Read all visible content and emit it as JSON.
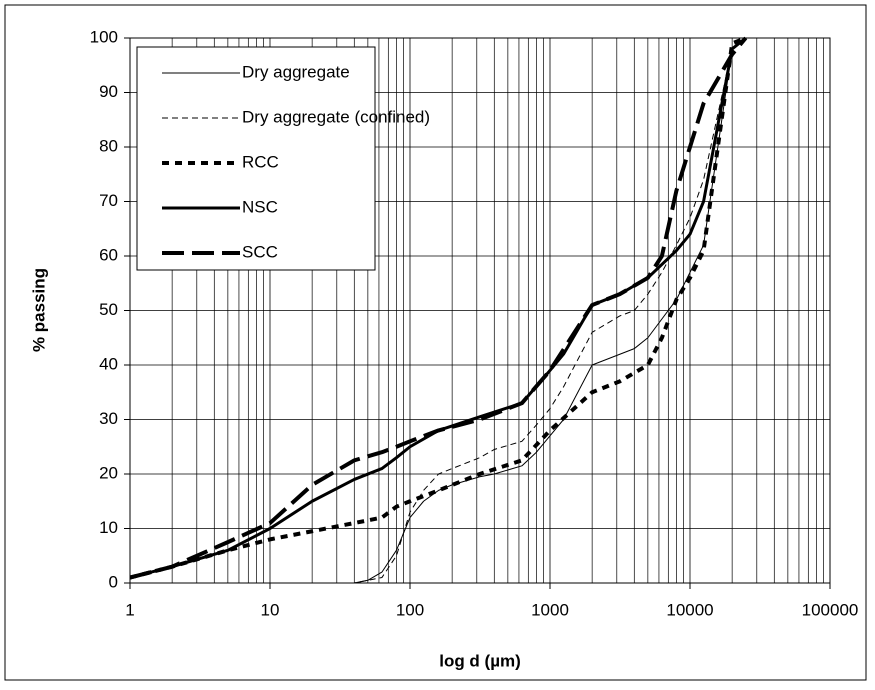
{
  "chart_data": {
    "type": "line",
    "xlabel": "log d (µm)",
    "ylabel": "% passing",
    "xscale": "log",
    "xlim": [
      1,
      100000
    ],
    "xticks": [
      1,
      10,
      100,
      1000,
      10000,
      100000
    ],
    "ylim": [
      0,
      100
    ],
    "yticks": [
      0,
      10,
      20,
      30,
      40,
      50,
      60,
      70,
      80,
      90,
      100
    ],
    "grid": true,
    "minor_grid": true,
    "legend": "upper left",
    "series": [
      {
        "name": "Dry aggregate",
        "color": "#000000",
        "width": 1,
        "dash": "none",
        "x": [
          1,
          40,
          50,
          63,
          80,
          100,
          125,
          160,
          200,
          315,
          400,
          630,
          800,
          1000,
          1250,
          2000,
          4000,
          5000,
          8000,
          10000,
          12500,
          20000,
          25000
        ],
        "values": [
          0,
          0,
          0.5,
          2,
          6,
          12,
          15,
          17,
          18,
          19.5,
          20,
          21.5,
          24,
          27,
          30,
          40,
          43,
          45,
          52,
          57,
          62,
          98,
          100
        ]
      },
      {
        "name": "Dry aggregate (confined)",
        "color": "#000000",
        "width": 1,
        "dash": "6 4",
        "x": [
          1,
          40,
          63,
          80,
          100,
          125,
          160,
          200,
          315,
          400,
          630,
          800,
          1000,
          1250,
          2000,
          3150,
          4000,
          5000,
          6300,
          8000,
          10000,
          12500,
          20000,
          25000
        ],
        "values": [
          0,
          0,
          1,
          5,
          13,
          17,
          20,
          21,
          23,
          24.5,
          26,
          29,
          32,
          36,
          46,
          49,
          50,
          53,
          57,
          62,
          67,
          74,
          98,
          100
        ]
      },
      {
        "name": "RCC",
        "color": "#000000",
        "width": 4,
        "dash": "7 6",
        "x": [
          1,
          2,
          5,
          10,
          20,
          40,
          63,
          80,
          100,
          160,
          315,
          630,
          1000,
          2000,
          3150,
          5000,
          6300,
          8000,
          10000,
          12500,
          20000,
          25000
        ],
        "values": [
          1,
          3,
          6,
          8,
          9.5,
          11,
          12,
          14,
          15,
          17,
          20,
          22.5,
          28,
          35,
          37,
          40,
          45,
          52,
          56,
          61,
          99,
          100
        ]
      },
      {
        "name": "NSC",
        "color": "#000000",
        "width": 3,
        "dash": "none",
        "x": [
          1,
          2,
          5,
          10,
          20,
          40,
          63,
          80,
          100,
          160,
          315,
          630,
          1000,
          1250,
          2000,
          3150,
          5000,
          8000,
          10000,
          12500,
          20000,
          25000
        ],
        "values": [
          1,
          3,
          6,
          10,
          15,
          19,
          21,
          23,
          25,
          28,
          30.5,
          33,
          39,
          42,
          51,
          53,
          56,
          61,
          64,
          70,
          98,
          100
        ]
      },
      {
        "name": "SCC",
        "color": "#000000",
        "width": 4,
        "dash": "22 8",
        "x": [
          1,
          2,
          5,
          10,
          20,
          40,
          63,
          80,
          100,
          160,
          315,
          630,
          1000,
          2000,
          3150,
          5000,
          6300,
          8000,
          10000,
          12500,
          20000,
          25000
        ],
        "values": [
          1,
          3,
          7.5,
          11,
          18,
          22.5,
          24,
          25,
          26,
          28,
          30,
          33,
          39,
          51,
          53,
          56,
          60,
          72,
          80,
          88,
          97,
          100
        ]
      }
    ]
  }
}
